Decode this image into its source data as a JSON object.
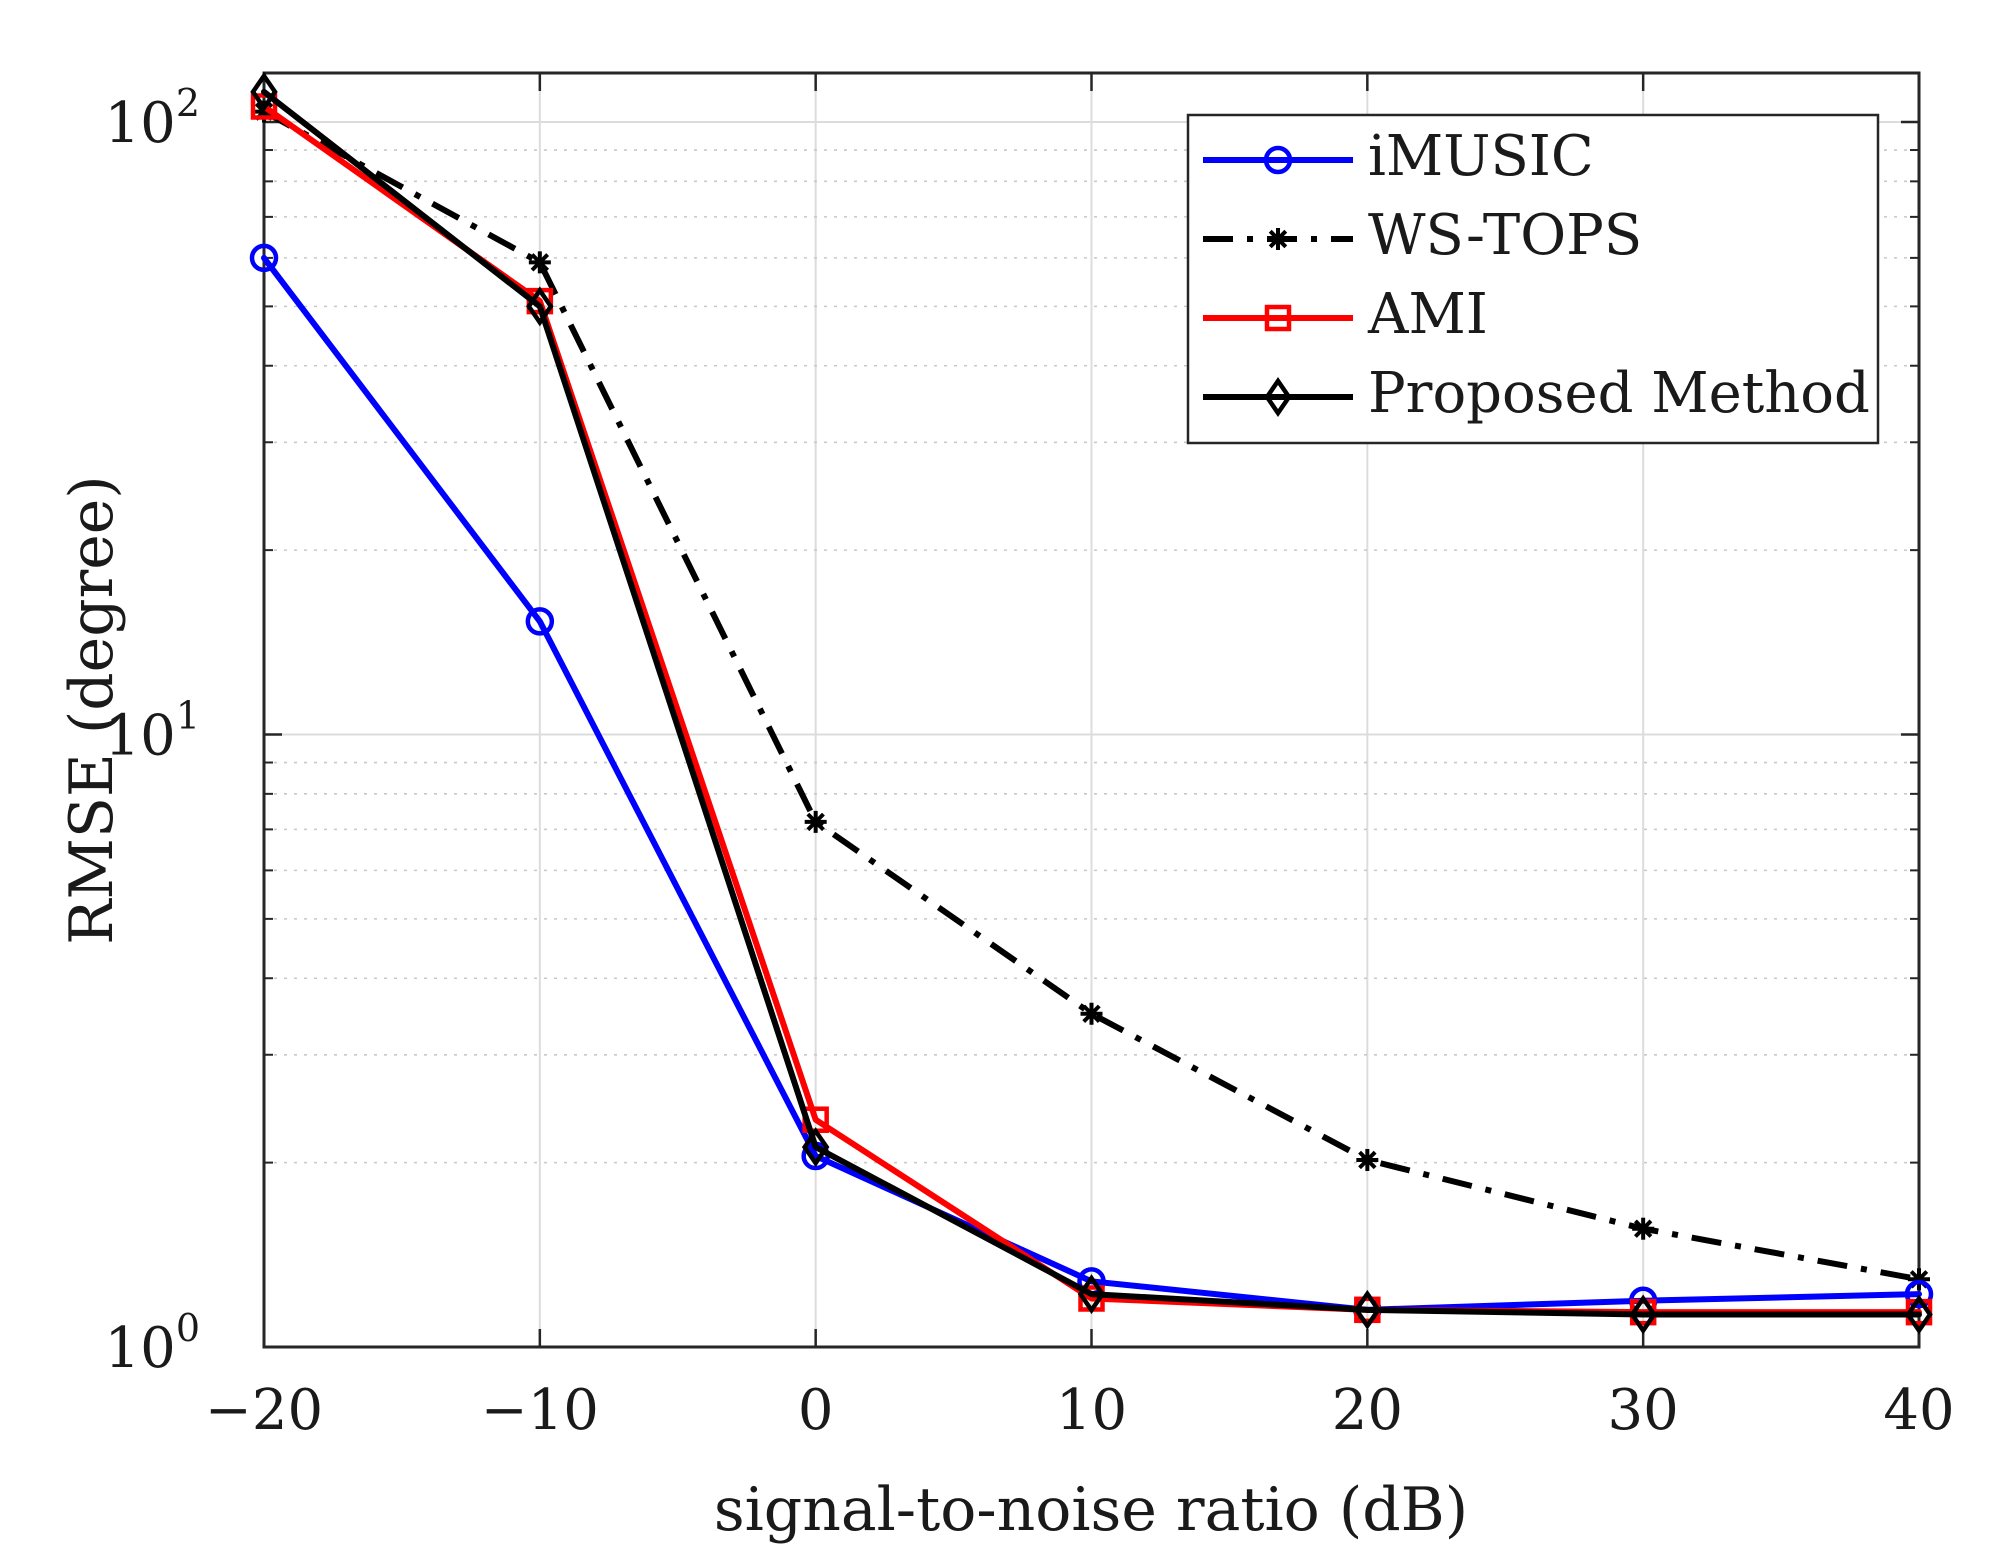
{
  "chart_data": {
    "type": "line",
    "title": "",
    "xlabel": "signal-to-noise ratio (dB)",
    "ylabel": "RMSE (degree)",
    "yscale": "log",
    "xlim": [
      -20,
      40
    ],
    "ylim": [
      1,
      120
    ],
    "grid": true,
    "legend_position": "top-right",
    "x": [
      -20,
      -10,
      0,
      10,
      20,
      30,
      40
    ],
    "x_ticks": [
      -20,
      -10,
      0,
      10,
      20,
      30,
      40
    ],
    "x_tick_labels": [
      "−20",
      "−10",
      "0",
      "10",
      "20",
      "30",
      "40"
    ],
    "y_ticks": [
      {
        "value": 1,
        "base": "10",
        "exp": "0"
      },
      {
        "value": 10,
        "base": "10",
        "exp": "1"
      },
      {
        "value": 100,
        "base": "10",
        "exp": "2"
      }
    ],
    "series": [
      {
        "name": "iMUSIC",
        "color": "#0000ff",
        "marker": "circle",
        "dash": "solid",
        "values": [
          60,
          15.3,
          2.05,
          1.28,
          1.15,
          1.19,
          1.22
        ]
      },
      {
        "name": "WS-TOPS",
        "color": "#000000",
        "marker": "asterisk",
        "dash": "dashdot",
        "values": [
          104,
          59,
          7.2,
          3.5,
          2.02,
          1.56,
          1.29
        ]
      },
      {
        "name": "AMI",
        "color": "#ff0000",
        "marker": "square",
        "dash": "solid",
        "values": [
          106,
          51,
          2.35,
          1.2,
          1.15,
          1.14,
          1.14
        ]
      },
      {
        "name": "Proposed Method",
        "color": "#000000",
        "marker": "diamond",
        "dash": "solid",
        "values": [
          112,
          50,
          2.12,
          1.22,
          1.15,
          1.13,
          1.13
        ]
      }
    ]
  }
}
